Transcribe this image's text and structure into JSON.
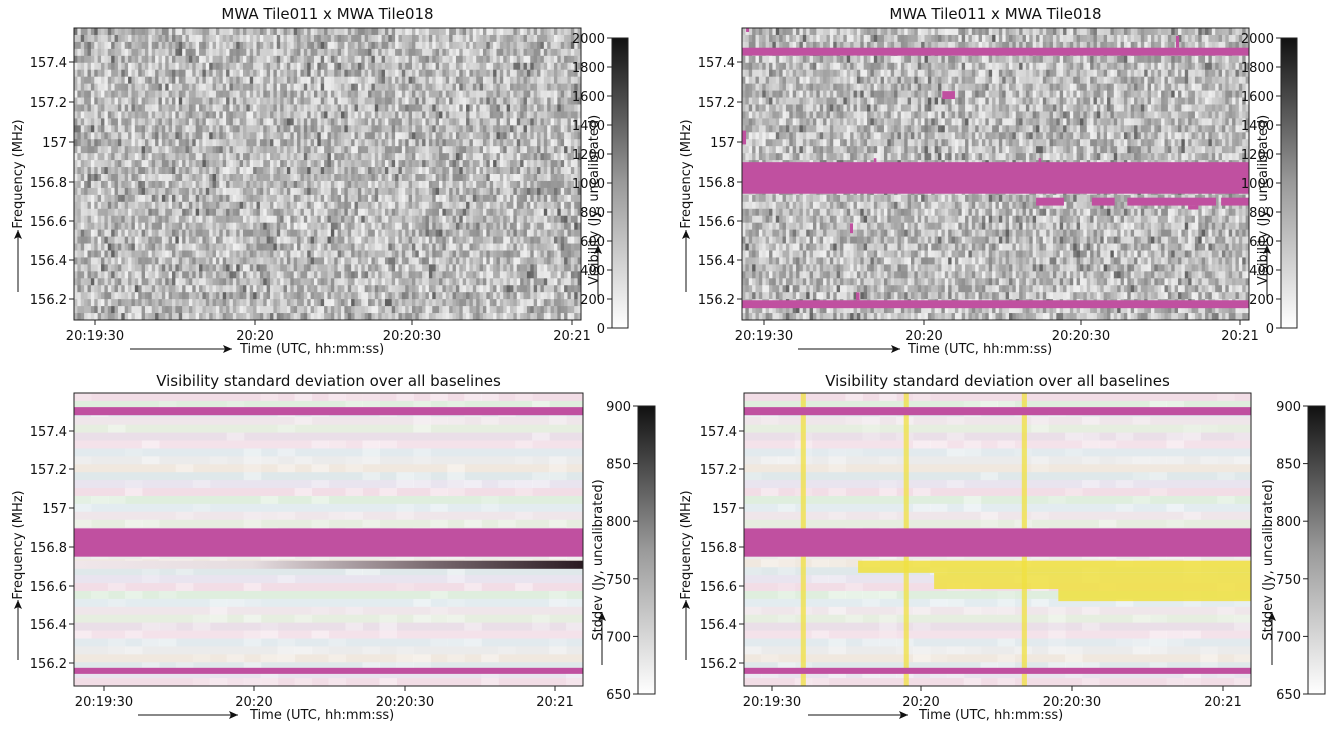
{
  "chart_data": [
    {
      "type": "heatmap",
      "title": "MWA Tile011 x MWA Tile018",
      "xlabel": "Time (UTC, hh:mm:ss)",
      "ylabel": "Frequency (MHz)",
      "colorbar_label": "Visibility (Jy, uncalibrated)",
      "x_ticks": [
        "20:19:30",
        "20:20",
        "20:20:30",
        "20:21"
      ],
      "y_ticks": [
        "157.4",
        "157.2",
        "157",
        "156.8",
        "156.6",
        "156.4",
        "156.2"
      ],
      "colorbar_ticks": [
        "2000",
        "1800",
        "1600",
        "1400",
        "1200",
        "1000",
        "800",
        "600",
        "400",
        "200",
        "0"
      ],
      "ylim": [
        156.1,
        157.58
      ],
      "clim": [
        0,
        2000
      ],
      "colormap": "greys",
      "flags": []
    },
    {
      "type": "heatmap",
      "title": "MWA Tile011 x MWA Tile018",
      "xlabel": "Time (UTC, hh:mm:ss)",
      "ylabel": "Frequency (MHz)",
      "colorbar_label": "Visibility (Jy, uncalibrated)",
      "x_ticks": [
        "20:19:30",
        "20:20",
        "20:20:30",
        "20:21"
      ],
      "y_ticks": [
        "157.4",
        "157.2",
        "157",
        "156.8",
        "156.6",
        "156.4",
        "156.2"
      ],
      "colorbar_ticks": [
        "2000",
        "1800",
        "1600",
        "1400",
        "1200",
        "1000",
        "800",
        "600",
        "400",
        "200",
        "0"
      ],
      "ylim": [
        156.1,
        157.58
      ],
      "clim": [
        0,
        2000
      ],
      "colormap": "greys",
      "flag_color": "#c050a0",
      "flagged_frequency_bands_mhz": [
        [
          157.44,
          157.48
        ],
        [
          156.74,
          156.9
        ],
        [
          156.16,
          156.2
        ]
      ],
      "flags": [
        {
          "type": "band",
          "y0": 157.44,
          "y1": 157.48
        },
        {
          "type": "band",
          "y0": 156.74,
          "y1": 156.9
        },
        {
          "type": "band",
          "y0": 156.16,
          "y1": 156.2
        },
        {
          "type": "cell",
          "x0": 0.395,
          "x1": 0.42,
          "y0": 157.22,
          "y1": 157.26
        },
        {
          "type": "cell",
          "x0": 0.58,
          "x1": 0.635,
          "y0": 156.68,
          "y1": 156.72
        },
        {
          "type": "cell",
          "x0": 0.69,
          "x1": 0.735,
          "y0": 156.68,
          "y1": 156.72
        },
        {
          "type": "cell",
          "x0": 0.76,
          "x1": 0.935,
          "y0": 156.68,
          "y1": 156.72
        },
        {
          "type": "cell",
          "x0": 0.945,
          "x1": 1.0,
          "y0": 156.68,
          "y1": 156.72
        },
        {
          "type": "cell",
          "x0": 0.88,
          "x1": 0.9,
          "y0": 156.66,
          "y1": 156.68
        },
        {
          "type": "cell",
          "x0": 0.0,
          "x1": 0.008,
          "y0": 156.99,
          "y1": 157.06
        },
        {
          "type": "cell",
          "x0": 0.225,
          "x1": 0.232,
          "y0": 156.2,
          "y1": 156.24
        },
        {
          "type": "cell",
          "x0": 0.213,
          "x1": 0.219,
          "y0": 156.54,
          "y1": 156.59
        },
        {
          "type": "cell",
          "x0": 0.856,
          "x1": 0.862,
          "y0": 157.48,
          "y1": 157.54
        },
        {
          "type": "cell",
          "x0": 0.008,
          "x1": 0.014,
          "y0": 157.56,
          "y1": 157.58
        },
        {
          "type": "cell",
          "x0": 0.26,
          "x1": 0.265,
          "y0": 156.9,
          "y1": 156.92
        },
        {
          "type": "cell",
          "x0": 0.585,
          "x1": 0.59,
          "y0": 156.9,
          "y1": 156.92
        }
      ]
    },
    {
      "type": "heatmap",
      "title": "Visibility standard deviation over all baselines",
      "xlabel": "Time (UTC, hh:mm:ss)",
      "ylabel": "Frequency (MHz)",
      "colorbar_label": "Stddev (Jy, uncalibrated)",
      "x_ticks": [
        "20:19:30",
        "20:20",
        "20:20:30",
        "20:21"
      ],
      "y_ticks": [
        "157.4",
        "157.2",
        "157",
        "156.8",
        "156.6",
        "156.4",
        "156.2"
      ],
      "colorbar_ticks": [
        "900",
        "850",
        "800",
        "750",
        "700",
        "650"
      ],
      "ylim": [
        156.1,
        157.55
      ],
      "clim": [
        650,
        900
      ],
      "colormap": "greys",
      "flag_color": "#c050a0",
      "flagged_frequency_bands_mhz": [
        [
          157.44,
          157.48
        ],
        [
          156.74,
          156.88
        ],
        [
          156.16,
          156.19
        ]
      ],
      "flags": [
        {
          "type": "band",
          "y0": 157.44,
          "y1": 157.48
        },
        {
          "type": "band",
          "y0": 156.74,
          "y1": 156.88
        },
        {
          "type": "band",
          "y0": 156.16,
          "y1": 156.19
        }
      ]
    },
    {
      "type": "heatmap",
      "title": "Visibility standard deviation over all baselines",
      "xlabel": "Time (UTC, hh:mm:ss)",
      "ylabel": "Frequency (MHz)",
      "colorbar_label": "Stddev (Jy, uncalibrated)",
      "x_ticks": [
        "20:19:30",
        "20:20",
        "20:20:30",
        "20:21"
      ],
      "y_ticks": [
        "157.4",
        "157.2",
        "157",
        "156.8",
        "156.6",
        "156.4",
        "156.2"
      ],
      "colorbar_ticks": [
        "900",
        "850",
        "800",
        "750",
        "700",
        "650"
      ],
      "ylim": [
        156.1,
        157.55
      ],
      "clim": [
        650,
        900
      ],
      "colormap": "greys",
      "flag_color": "#c050a0",
      "highlight_color": "#f0e040",
      "flagged_frequency_bands_mhz": [
        [
          157.44,
          157.48
        ],
        [
          156.74,
          156.88
        ],
        [
          156.16,
          156.19
        ]
      ],
      "flags": [
        {
          "type": "band",
          "y0": 157.44,
          "y1": 157.48
        },
        {
          "type": "band",
          "y0": 156.74,
          "y1": 156.88
        },
        {
          "type": "band",
          "y0": 156.16,
          "y1": 156.19
        }
      ],
      "highlights": [
        {
          "type": "cell",
          "x0": 0.225,
          "x1": 1.0,
          "y0": 156.66,
          "y1": 156.72
        },
        {
          "type": "cell",
          "x0": 0.375,
          "x1": 1.0,
          "y0": 156.58,
          "y1": 156.66
        },
        {
          "type": "cell",
          "x0": 0.62,
          "x1": 1.0,
          "y0": 156.52,
          "y1": 156.58
        }
      ],
      "highlighted_time_columns": [
        {
          "x0": 0.112,
          "x1": 0.122
        },
        {
          "x0": 0.315,
          "x1": 0.325
        },
        {
          "x0": 0.548,
          "x1": 0.558
        }
      ]
    }
  ]
}
